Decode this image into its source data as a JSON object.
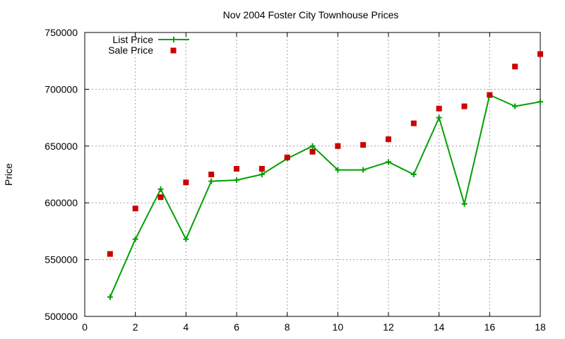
{
  "chart_data": {
    "type": "line",
    "title": "Nov 2004 Foster City Townhouse Prices",
    "xlabel": "",
    "ylabel": "Price",
    "xlim": [
      0,
      18
    ],
    "ylim": [
      500000,
      750000
    ],
    "x_ticks": [
      "0",
      "2",
      "4",
      "6",
      "8",
      "10",
      "12",
      "14",
      "16",
      "18"
    ],
    "y_ticks": [
      "500000",
      "550000",
      "600000",
      "650000",
      "700000",
      "750000"
    ],
    "grid": true,
    "legend_position": "top-left",
    "series": [
      {
        "name": "List Price",
        "style": "line with plus markers",
        "color": "#00a000",
        "x": [
          1,
          2,
          3,
          4,
          5,
          6,
          7,
          8,
          9,
          10,
          11,
          12,
          13,
          14,
          15,
          16,
          17,
          18
        ],
        "values": [
          517000,
          568000,
          612000,
          568000,
          619000,
          620000,
          625000,
          639000,
          650000,
          629000,
          629000,
          636000,
          625000,
          675000,
          599000,
          695000,
          685000,
          689000
        ]
      },
      {
        "name": "Sale Price",
        "style": "square markers",
        "color": "#cc0000",
        "x": [
          1,
          2,
          3,
          4,
          5,
          6,
          7,
          8,
          9,
          10,
          11,
          12,
          13,
          14,
          15,
          16,
          17,
          18
        ],
        "values": [
          555000,
          595000,
          605000,
          618000,
          625000,
          630000,
          630000,
          640000,
          645000,
          650000,
          651000,
          656000,
          670000,
          683000,
          685000,
          695000,
          720000,
          731000
        ]
      }
    ]
  }
}
